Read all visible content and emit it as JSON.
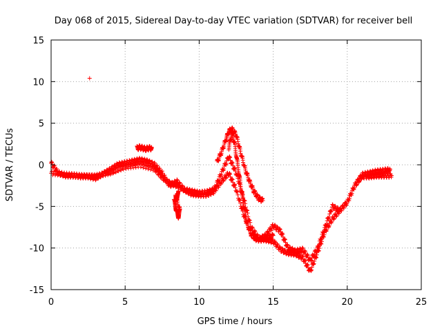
{
  "chart_data": {
    "type": "scatter",
    "title": "Day 068 of 2015, Sidereal Day-to-day VTEC variation (SDTVAR) for receiver bell",
    "xlabel": "GPS time / hours",
    "ylabel": "SDTVAR / TECUs",
    "xlim": [
      0,
      25
    ],
    "ylim": [
      -15,
      15
    ],
    "xticks": [
      0,
      5,
      10,
      15,
      20,
      25
    ],
    "yticks": [
      -15,
      -10,
      -5,
      0,
      5,
      10,
      15
    ],
    "grid": true,
    "marker": "+",
    "color": "#ff0000",
    "series": [
      {
        "name": "main trace",
        "x": [
          0.0,
          0.5,
          1.0,
          1.5,
          2.0,
          2.5,
          3.0,
          3.5,
          4.0,
          4.5,
          5.0,
          5.5,
          6.0,
          6.5,
          7.0,
          7.5,
          8.0,
          8.5,
          9.0,
          9.5,
          10.0,
          10.5,
          11.0,
          11.5,
          12.0,
          12.5,
          13.0,
          13.5,
          14.0,
          14.5,
          15.0,
          15.5,
          16.0,
          16.5,
          17.0,
          17.5,
          18.0,
          18.5,
          19.0,
          19.5,
          20.0,
          20.5,
          21.0,
          21.5,
          22.0,
          22.5,
          22.9
        ],
        "y": [
          0.2,
          -1.0,
          -1.3,
          -1.3,
          -1.4,
          -1.4,
          -1.6,
          -1.1,
          -0.6,
          0.0,
          0.2,
          0.4,
          0.6,
          0.4,
          0.0,
          -1.0,
          -2.5,
          -2.0,
          -3.0,
          -3.5,
          -3.6,
          -3.6,
          -3.2,
          -2.0,
          -1.0,
          -3.0,
          -6.0,
          -8.3,
          -9.0,
          -8.5,
          -7.3,
          -8.0,
          -10.0,
          -10.4,
          -10.2,
          -11.5,
          -10.0,
          -7.5,
          -5.0,
          -5.5,
          -4.5,
          -2.5,
          -1.2,
          -1.0,
          -0.8,
          -0.7,
          -0.6
        ]
      },
      {
        "name": "secondary trace",
        "x": [
          0.0,
          1.0,
          2.0,
          3.0,
          4.0,
          5.0,
          6.0,
          7.0,
          7.5,
          8.0,
          8.5,
          9.0,
          9.5,
          10.0,
          10.5,
          11.0,
          11.5,
          12.0,
          12.5,
          13.0,
          13.5,
          14.0,
          14.5,
          15.0,
          15.5,
          16.0,
          16.5,
          17.0,
          17.5,
          18.0,
          18.5,
          19.0,
          19.5,
          20.0,
          20.5,
          21.0,
          21.5,
          22.0,
          22.5,
          23.0
        ],
        "y": [
          -1.0,
          -1.2,
          -1.3,
          -1.3,
          -1.0,
          -0.3,
          0.0,
          -0.5,
          -1.5,
          -2.2,
          -2.5,
          -3.0,
          -3.2,
          -3.4,
          -3.3,
          -3.0,
          -1.0,
          1.0,
          -1.0,
          -4.0,
          -7.5,
          -8.8,
          -9.0,
          -9.2,
          -10.2,
          -10.6,
          -10.7,
          -11.2,
          -12.8,
          -10.5,
          -8.0,
          -6.5,
          -5.5,
          -4.5,
          -2.5,
          -1.4,
          -1.4,
          -1.3,
          -1.3,
          -1.3
        ]
      },
      {
        "name": "peak branch",
        "x": [
          11.2,
          11.5,
          11.8,
          12.0,
          12.2,
          12.5,
          12.8,
          13.1,
          13.4,
          13.7,
          14.0,
          14.3
        ],
        "y": [
          0.3,
          1.5,
          3.0,
          4.0,
          4.3,
          3.6,
          1.5,
          -0.5,
          -2.0,
          -3.2,
          -4.0,
          -4.3
        ]
      },
      {
        "name": "drop branch",
        "x": [
          12.0,
          12.2,
          12.4,
          12.6,
          12.8,
          13.0,
          13.2,
          13.5,
          13.8,
          14.2,
          14.6,
          15.0
        ],
        "y": [
          2.0,
          3.8,
          2.5,
          0.0,
          -2.5,
          -4.8,
          -6.8,
          -8.3,
          -8.9,
          -9.0,
          -8.8,
          -8.5
        ]
      },
      {
        "name": "bump near 6h",
        "x": [
          5.8,
          6.0,
          6.2,
          6.4,
          6.6,
          6.8
        ],
        "y": [
          2.0,
          2.1,
          2.0,
          1.9,
          2.0,
          2.0
        ]
      },
      {
        "name": "dips near 8.5h",
        "x": [
          8.3,
          8.4,
          8.5,
          8.6,
          8.7,
          8.4,
          8.5,
          8.6
        ],
        "y": [
          -4.2,
          -5.0,
          -5.8,
          -6.2,
          -5.5,
          -3.5,
          -4.5,
          -2.8
        ]
      },
      {
        "name": "outlier",
        "x": [
          2.6
        ],
        "y": [
          10.4
        ]
      }
    ]
  }
}
